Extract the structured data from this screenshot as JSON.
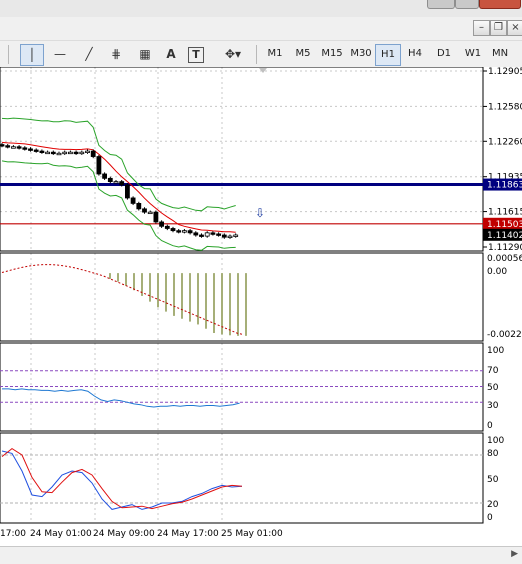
{
  "toolbar": {
    "tools": [
      "line-icon-vertical",
      "horizontal-line-icon",
      "trendline-icon",
      "fibo-expansion-icon",
      "fibo-fan-icon",
      "text-A",
      "text-label-T",
      "arrows-icon"
    ],
    "text_tool": "A",
    "label_tool": "T",
    "timeframes": [
      "M1",
      "M5",
      "M15",
      "M30",
      "H1",
      "H4",
      "D1",
      "W1",
      "MN"
    ],
    "active_timeframe": "H1"
  },
  "price_axis": {
    "ticks": [
      "1.12905",
      "1.12580",
      "1.12260",
      "1.11935",
      "1.11615",
      "1.11290"
    ],
    "hline_label": "1.11863",
    "bid_label": "1.11503",
    "current_label": "1.11402"
  },
  "macd_axis": {
    "ticks": [
      "0.000565",
      "0.00",
      "-0.00224"
    ]
  },
  "rsi_axis": {
    "ticks": [
      "100",
      "70",
      "50",
      "30",
      "0"
    ]
  },
  "stoch_axis": {
    "ticks": [
      "100",
      "80",
      "50",
      "20",
      "0"
    ]
  },
  "time_axis": {
    "labels": [
      "17:00",
      "24 May 01:00",
      "24 May 09:00",
      "24 May 17:00",
      "25 May 01:00"
    ]
  },
  "colors": {
    "hline": "#00007f",
    "bid_line": "#c00000",
    "bands": "#2aa32a",
    "ma_red": "#e00000",
    "macd_hist": "#6b7a1e",
    "rsi_line": "#1e78d2",
    "level_line": "#8a4abf",
    "stoch_main": "#2050e0",
    "stoch_signal": "#e01010"
  },
  "chart_data": [
    {
      "type": "candlestick",
      "title": "",
      "xlabel": "",
      "ylabel": "",
      "ylim": [
        1.1129,
        1.12905
      ],
      "horizontal_line": 1.11863,
      "bid": 1.11503,
      "last": 1.11402,
      "closes": [
        1.1222,
        1.1221,
        1.1221,
        1.122,
        1.1219,
        1.1218,
        1.1217,
        1.1216,
        1.1216,
        1.1215,
        1.1215,
        1.1216,
        1.1216,
        1.1215,
        1.1216,
        1.1217,
        1.1212,
        1.1196,
        1.1192,
        1.1189,
        1.1189,
        1.1186,
        1.1174,
        1.1169,
        1.1164,
        1.1161,
        1.1161,
        1.1152,
        1.1148,
        1.1146,
        1.1144,
        1.1143,
        1.1144,
        1.1142,
        1.114,
        1.1139,
        1.1142,
        1.1141,
        1.114,
        1.1138,
        1.1139,
        1.114
      ]
    },
    {
      "type": "histogram",
      "title": "",
      "ylim": [
        -0.00224,
        0.000565
      ],
      "values": [
        -0.0002,
        -0.0003,
        -0.00045,
        -0.0006,
        -0.0008,
        -0.001,
        -0.0012,
        -0.00135,
        -0.0015,
        -0.0016,
        -0.0017,
        -0.0018,
        -0.00195,
        -0.0021,
        -0.00215,
        -0.00218,
        -0.0022,
        -0.0022
      ]
    },
    {
      "type": "line",
      "title": "",
      "ylim": [
        0,
        100
      ],
      "levels": [
        70,
        50,
        30
      ],
      "values": [
        47,
        47,
        46,
        47,
        46,
        46,
        45,
        45,
        44,
        45,
        44,
        45,
        46,
        44,
        38,
        33,
        31,
        33,
        32,
        30,
        28,
        27,
        25,
        24,
        25,
        25,
        26,
        25,
        26,
        26,
        25,
        26,
        26,
        25,
        26,
        27,
        29
      ]
    },
    {
      "type": "line",
      "title": "",
      "ylim": [
        0,
        100
      ],
      "levels": [
        80,
        20
      ],
      "series": [
        {
          "values": [
            85,
            82,
            60,
            30,
            28,
            40,
            55,
            60,
            58,
            45,
            25,
            12,
            15,
            18,
            12,
            15,
            20,
            20,
            22,
            28,
            32,
            38,
            42,
            40,
            41
          ]
        },
        {
          "values": [
            78,
            88,
            80,
            52,
            34,
            33,
            46,
            58,
            62,
            55,
            38,
            22,
            14,
            15,
            16,
            13,
            16,
            19,
            21,
            25,
            30,
            35,
            40,
            42,
            41
          ]
        }
      ]
    }
  ]
}
